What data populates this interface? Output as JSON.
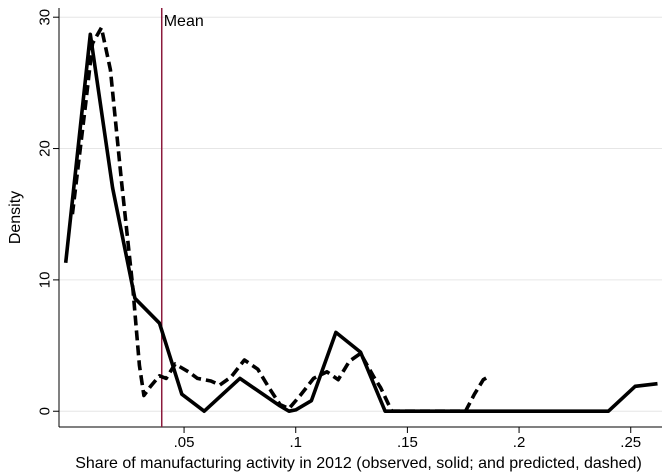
{
  "chart_data": {
    "type": "line",
    "title": "",
    "xlabel": "Share of manufacturing activity in 2012 (observed, solid; and predicted, dashed)",
    "ylabel": "Density",
    "xlim": [
      -0.006,
      0.264
    ],
    "ylim": [
      -1.2,
      30.7
    ],
    "x_ticks": [
      {
        "value": 0.05,
        "label": ".05"
      },
      {
        "value": 0.1,
        "label": ".1"
      },
      {
        "value": 0.15,
        "label": ".15"
      },
      {
        "value": 0.2,
        "label": ".2"
      },
      {
        "value": 0.25,
        "label": ".25"
      }
    ],
    "y_ticks": [
      {
        "value": 0,
        "label": "0"
      },
      {
        "value": 10,
        "label": "10"
      },
      {
        "value": 20,
        "label": "20"
      },
      {
        "value": 30,
        "label": "30"
      }
    ],
    "grid": true,
    "legend": "none",
    "annotations": [
      {
        "type": "vline",
        "x": 0.04,
        "label": "Mean",
        "color": "#8b1a3c"
      }
    ],
    "series": [
      {
        "style": "solid",
        "color": "#000000",
        "points": [
          [
            -0.003,
            11.3
          ],
          [
            0.008,
            28.7
          ],
          [
            0.018,
            17.0
          ],
          [
            0.028,
            8.6
          ],
          [
            0.039,
            6.7
          ],
          [
            0.049,
            1.3
          ],
          [
            0.059,
            0.0
          ],
          [
            0.075,
            2.5
          ],
          [
            0.093,
            0.4
          ],
          [
            0.097,
            0.0
          ],
          [
            0.1,
            0.1
          ],
          [
            0.107,
            0.8
          ],
          [
            0.118,
            6.0
          ],
          [
            0.129,
            4.5
          ],
          [
            0.14,
            0.0
          ],
          [
            0.24,
            0.0
          ],
          [
            0.252,
            1.9
          ],
          [
            0.262,
            2.1
          ]
        ]
      },
      {
        "style": "dashed",
        "color": "#000000",
        "points": [
          [
            0.0,
            15.0
          ],
          [
            0.006,
            23.5
          ],
          [
            0.009,
            28.0
          ],
          [
            0.013,
            29.2
          ],
          [
            0.017,
            26.0
          ],
          [
            0.022,
            17.5
          ],
          [
            0.027,
            9.5
          ],
          [
            0.03,
            3.5
          ],
          [
            0.032,
            1.2
          ],
          [
            0.035,
            1.9
          ],
          [
            0.039,
            2.7
          ],
          [
            0.042,
            2.5
          ],
          [
            0.046,
            3.6
          ],
          [
            0.052,
            3.0
          ],
          [
            0.056,
            2.5
          ],
          [
            0.062,
            2.3
          ],
          [
            0.066,
            2.0
          ],
          [
            0.071,
            2.6
          ],
          [
            0.077,
            3.9
          ],
          [
            0.083,
            3.2
          ],
          [
            0.088,
            1.8
          ],
          [
            0.093,
            0.5
          ],
          [
            0.097,
            0.2
          ],
          [
            0.102,
            1.2
          ],
          [
            0.108,
            2.5
          ],
          [
            0.114,
            3.0
          ],
          [
            0.119,
            2.4
          ],
          [
            0.124,
            3.8
          ],
          [
            0.129,
            4.4
          ],
          [
            0.135,
            2.6
          ],
          [
            0.138,
            1.8
          ],
          [
            0.143,
            0.0
          ],
          [
            0.176,
            0.0
          ],
          [
            0.18,
            1.3
          ],
          [
            0.184,
            2.4
          ],
          [
            0.187,
            2.7
          ]
        ]
      }
    ]
  }
}
